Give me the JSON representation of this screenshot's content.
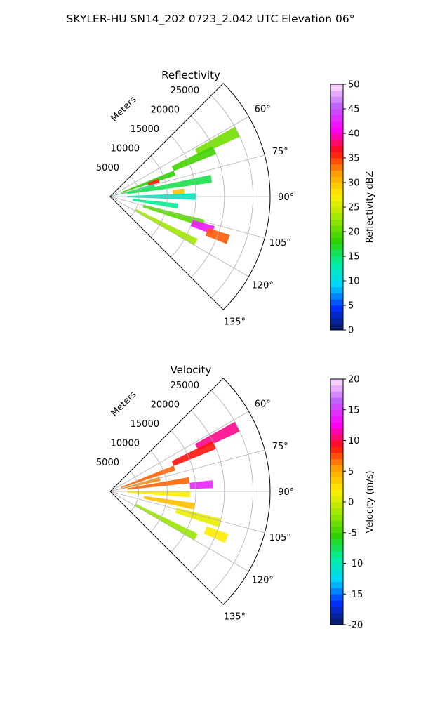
{
  "figure": {
    "title": "SKYLER-HU  SN14_202  0723_2.042 UTC Elevation 06°"
  },
  "chart_data": [
    {
      "type": "heatmap",
      "subtype": "polar-sector (radar PPI)",
      "title": "Reflectivity",
      "radial_label": "Meters",
      "radial_ticks": [
        "5000",
        "10000",
        "15000",
        "20000",
        "25000"
      ],
      "angle_ticks": [
        "60°",
        "75°",
        "90°",
        "105°",
        "120°",
        "135°"
      ],
      "angle_range_deg": [
        45,
        135
      ],
      "range_max_m": 28000,
      "grid": true,
      "colorbar": {
        "label": "Reflectivity dBZ",
        "ticks": [
          "0",
          "5",
          "10",
          "15",
          "20",
          "25",
          "30",
          "35",
          "40",
          "45",
          "50"
        ],
        "range": [
          0,
          50
        ],
        "stops": [
          "#0a1a5a",
          "#0030ff",
          "#00d4ff",
          "#00f0a0",
          "#30d000",
          "#9ce800",
          "#fff000",
          "#ffa000",
          "#ff1010",
          "#ff00ff",
          "#c060ff",
          "#ffe0ff"
        ]
      },
      "echoes": [
        {
          "az": 63,
          "r0": 17000,
          "r1": 25000,
          "dbz": 21
        },
        {
          "az": 66,
          "r0": 12000,
          "r1": 20000,
          "dbz": 19
        },
        {
          "az": 70,
          "r0": 2000,
          "r1": 12000,
          "dbz": 18
        },
        {
          "az": 72,
          "r0": 7000,
          "r1": 9000,
          "dbz": 36
        },
        {
          "az": 76,
          "r0": 1000,
          "r1": 8000,
          "dbz": 15
        },
        {
          "az": 80,
          "r0": 3000,
          "r1": 18000,
          "dbz": 16
        },
        {
          "az": 86,
          "r0": 11000,
          "r1": 13000,
          "dbz": 30
        },
        {
          "az": 90,
          "r0": 3000,
          "r1": 15000,
          "dbz": 12
        },
        {
          "az": 98,
          "r0": 4000,
          "r1": 12000,
          "dbz": 14
        },
        {
          "az": 106,
          "r0": 6000,
          "r1": 17000,
          "dbz": 20
        },
        {
          "az": 108,
          "r0": 15000,
          "r1": 19000,
          "dbz": 42
        },
        {
          "az": 110,
          "r0": 18000,
          "r1": 22000,
          "dbz": 34
        },
        {
          "az": 118,
          "r0": 5000,
          "r1": 17000,
          "dbz": 23
        }
      ]
    },
    {
      "type": "heatmap",
      "subtype": "polar-sector (radar PPI)",
      "title": "Velocity",
      "radial_label": "Meters",
      "radial_ticks": [
        "5000",
        "10000",
        "15000",
        "20000",
        "25000"
      ],
      "angle_ticks": [
        "60°",
        "75°",
        "90°",
        "105°",
        "120°",
        "135°"
      ],
      "angle_range_deg": [
        45,
        135
      ],
      "range_max_m": 28000,
      "grid": true,
      "colorbar": {
        "label": "Velocity (m/s)",
        "ticks": [
          "-20",
          "-15",
          "-10",
          "-5",
          "0",
          "5",
          "10",
          "15",
          "20"
        ],
        "range": [
          -20,
          20
        ],
        "stops": [
          "#0a1a5a",
          "#0030ff",
          "#00d4ff",
          "#00f0a0",
          "#30d000",
          "#9ce800",
          "#fff000",
          "#ffa000",
          "#ff1010",
          "#ff00ff",
          "#c060ff",
          "#ffe0ff"
        ]
      },
      "echoes": [
        {
          "az": 63,
          "r0": 17000,
          "r1": 25000,
          "vel": 11
        },
        {
          "az": 66,
          "r0": 12000,
          "r1": 20000,
          "vel": 9
        },
        {
          "az": 70,
          "r0": 2000,
          "r1": 12000,
          "vel": 7
        },
        {
          "az": 76,
          "r0": 1000,
          "r1": 9000,
          "vel": 6
        },
        {
          "az": 82,
          "r0": 3000,
          "r1": 14000,
          "vel": 7
        },
        {
          "az": 86,
          "r0": 14000,
          "r1": 18000,
          "vel": 14
        },
        {
          "az": 92,
          "r0": 3000,
          "r1": 14000,
          "vel": 2
        },
        {
          "az": 100,
          "r0": 6000,
          "r1": 15000,
          "vel": 4
        },
        {
          "az": 106,
          "r0": 12000,
          "r1": 20000,
          "vel": 1
        },
        {
          "az": 112,
          "r0": 18000,
          "r1": 22000,
          "vel": 2
        },
        {
          "az": 118,
          "r0": 5000,
          "r1": 17000,
          "vel": -2
        }
      ]
    }
  ]
}
